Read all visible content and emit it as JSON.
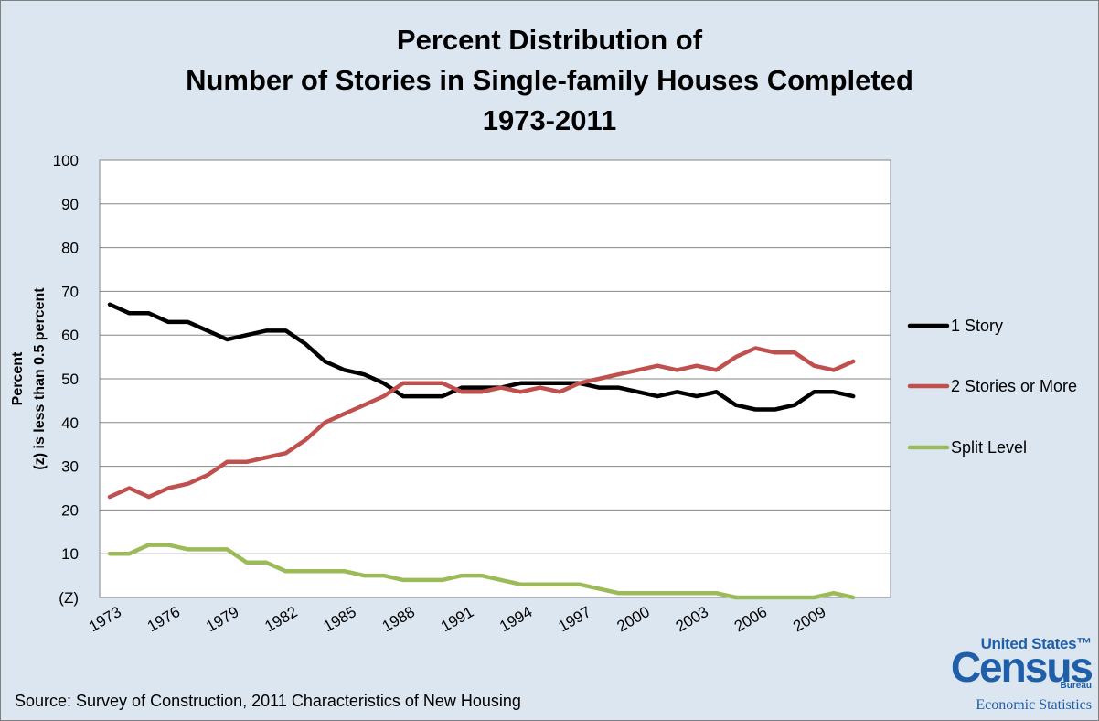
{
  "chart_data": {
    "type": "line",
    "title": [
      "Percent Distribution of",
      "Number of Stories in Single-family Houses Completed",
      "1973-2011"
    ],
    "ylabel": "Percent",
    "ylabel_note": "(z) is less than 0.5 percent",
    "ylim": [
      0,
      100
    ],
    "y_ticks": [
      {
        "value": 0,
        "label": "(Z)"
      },
      {
        "value": 10,
        "label": "10"
      },
      {
        "value": 20,
        "label": "20"
      },
      {
        "value": 30,
        "label": "30"
      },
      {
        "value": 40,
        "label": "40"
      },
      {
        "value": 50,
        "label": "50"
      },
      {
        "value": 60,
        "label": "60"
      },
      {
        "value": 70,
        "label": "70"
      },
      {
        "value": 80,
        "label": "80"
      },
      {
        "value": 90,
        "label": "90"
      },
      {
        "value": 100,
        "label": "100"
      }
    ],
    "x": [
      1973,
      1974,
      1975,
      1976,
      1977,
      1978,
      1979,
      1980,
      1981,
      1982,
      1983,
      1984,
      1985,
      1986,
      1987,
      1988,
      1989,
      1990,
      1991,
      1992,
      1993,
      1994,
      1995,
      1996,
      1997,
      1998,
      1999,
      2000,
      2001,
      2002,
      2003,
      2004,
      2005,
      2006,
      2007,
      2008,
      2009,
      2010,
      2011
    ],
    "x_tick_labels": [
      "1973",
      "1976",
      "1979",
      "1982",
      "1985",
      "1988",
      "1991",
      "1994",
      "1997",
      "2000",
      "2003",
      "2006",
      "2009"
    ],
    "grid": true,
    "legend_position": "right",
    "series": [
      {
        "name": "1 Story",
        "color": "#000000",
        "values": [
          67,
          65,
          65,
          63,
          63,
          61,
          59,
          60,
          61,
          61,
          58,
          54,
          52,
          51,
          49,
          46,
          46,
          46,
          48,
          48,
          48,
          49,
          49,
          49,
          49,
          48,
          48,
          47,
          46,
          47,
          46,
          47,
          44,
          43,
          43,
          44,
          47,
          47,
          46
        ]
      },
      {
        "name": "2 Stories or More",
        "color": "#c0504d",
        "values": [
          23,
          25,
          23,
          25,
          26,
          28,
          31,
          31,
          32,
          33,
          36,
          40,
          42,
          44,
          46,
          49,
          49,
          49,
          47,
          47,
          48,
          47,
          48,
          47,
          49,
          50,
          51,
          52,
          53,
          52,
          53,
          52,
          55,
          57,
          56,
          56,
          53,
          52,
          54
        ]
      },
      {
        "name": "Split Level",
        "color": "#9bbb59",
        "values": [
          10,
          10,
          12,
          12,
          11,
          11,
          11,
          8,
          8,
          6,
          6,
          6,
          6,
          5,
          5,
          4,
          4,
          4,
          5,
          5,
          4,
          3,
          3,
          3,
          3,
          2,
          1,
          1,
          1,
          1,
          1,
          1,
          0,
          0,
          0,
          0,
          0,
          1,
          0
        ]
      }
    ]
  },
  "source": "Source: Survey of Construction, 2011 Characteristics of New Housing",
  "logo": {
    "line1": "United States™",
    "line2": "Census",
    "line3": "Bureau",
    "line4": "Economic Statistics"
  }
}
